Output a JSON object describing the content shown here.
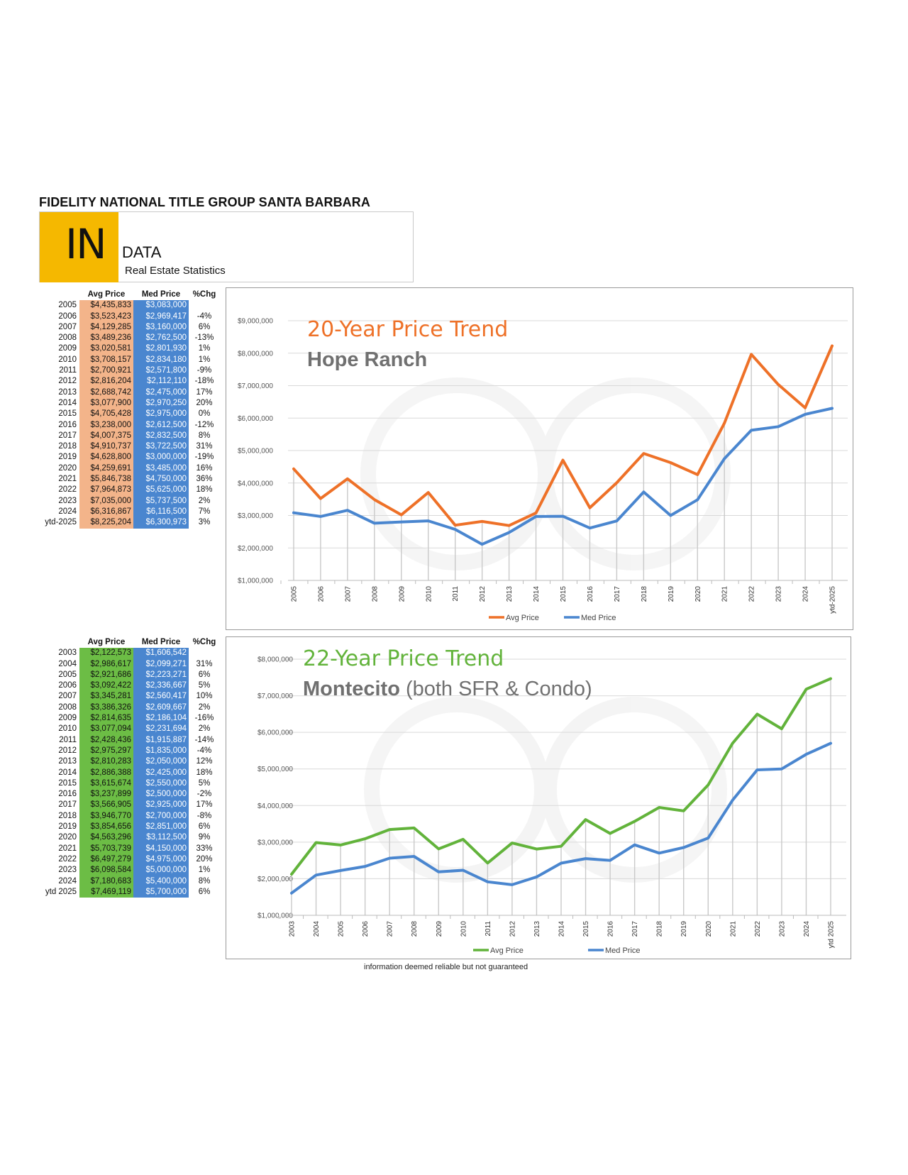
{
  "header": {
    "org": "FIDELITY NATIONAL TITLE GROUP SANTA BARBARA",
    "logo_big": "IN",
    "logo_word": "DATA",
    "logo_sub": "Real Estate Statistics"
  },
  "colors": {
    "avg1": "#ee7128",
    "avg2": "#62b33b",
    "med": "#4a86cf",
    "logo": "#f5b800"
  },
  "table1": {
    "headers": [
      "Avg Price",
      "Med Price",
      "%Chg"
    ],
    "rows": [
      {
        "year": "2005",
        "avg": "$4,435,833",
        "med": "$3,083,000",
        "pct": ""
      },
      {
        "year": "2006",
        "avg": "$3,523,423",
        "med": "$2,969,417",
        "pct": "-4%"
      },
      {
        "year": "2007",
        "avg": "$4,129,285",
        "med": "$3,160,000",
        "pct": "6%"
      },
      {
        "year": "2008",
        "avg": "$3,489,236",
        "med": "$2,762,500",
        "pct": "-13%"
      },
      {
        "year": "2009",
        "avg": "$3,020,581",
        "med": "$2,801,930",
        "pct": "1%"
      },
      {
        "year": "2010",
        "avg": "$3,708,157",
        "med": "$2,834,180",
        "pct": "1%"
      },
      {
        "year": "2011",
        "avg": "$2,700,921",
        "med": "$2,571,800",
        "pct": "-9%"
      },
      {
        "year": "2012",
        "avg": "$2,816,204",
        "med": "$2,112,110",
        "pct": "-18%"
      },
      {
        "year": "2013",
        "avg": "$2,688,742",
        "med": "$2,475,000",
        "pct": "17%"
      },
      {
        "year": "2014",
        "avg": "$3,077,900",
        "med": "$2,970,250",
        "pct": "20%"
      },
      {
        "year": "2015",
        "avg": "$4,705,428",
        "med": "$2,975,000",
        "pct": "0%"
      },
      {
        "year": "2016",
        "avg": "$3,238,000",
        "med": "$2,612,500",
        "pct": "-12%"
      },
      {
        "year": "2017",
        "avg": "$4,007,375",
        "med": "$2,832,500",
        "pct": "8%"
      },
      {
        "year": "2018",
        "avg": "$4,910,737",
        "med": "$3,722,500",
        "pct": "31%"
      },
      {
        "year": "2019",
        "avg": "$4,628,800",
        "med": "$3,000,000",
        "pct": "-19%"
      },
      {
        "year": "2020",
        "avg": "$4,259,691",
        "med": "$3,485,000",
        "pct": "16%"
      },
      {
        "year": "2021",
        "avg": "$5,846,738",
        "med": "$4,750,000",
        "pct": "36%"
      },
      {
        "year": "2022",
        "avg": "$7,964,873",
        "med": "$5,625,000",
        "pct": "18%"
      },
      {
        "year": "2023",
        "avg": "$7,035,000",
        "med": "$5,737,500",
        "pct": "2%"
      },
      {
        "year": "2024",
        "avg": "$6,316,867",
        "med": "$6,116,500",
        "pct": "7%"
      },
      {
        "year": "ytd-2025",
        "avg": "$8,225,204",
        "med": "$6,300,973",
        "pct": "3%"
      }
    ]
  },
  "table2": {
    "headers": [
      "Avg Price",
      "Med Price",
      "%Chg"
    ],
    "rows": [
      {
        "year": "2003",
        "avg": "$2,122,573",
        "med": "$1,606,542",
        "pct": ""
      },
      {
        "year": "2004",
        "avg": "$2,986,617",
        "med": "$2,099,271",
        "pct": "31%"
      },
      {
        "year": "2005",
        "avg": "$2,921,686",
        "med": "$2,223,271",
        "pct": "6%"
      },
      {
        "year": "2006",
        "avg": "$3,092,422",
        "med": "$2,336,667",
        "pct": "5%"
      },
      {
        "year": "2007",
        "avg": "$3,345,281",
        "med": "$2,560,417",
        "pct": "10%"
      },
      {
        "year": "2008",
        "avg": "$3,386,326",
        "med": "$2,609,667",
        "pct": "2%"
      },
      {
        "year": "2009",
        "avg": "$2,814,635",
        "med": "$2,186,104",
        "pct": "-16%"
      },
      {
        "year": "2010",
        "avg": "$3,077,094",
        "med": "$2,231,694",
        "pct": "2%"
      },
      {
        "year": "2011",
        "avg": "$2,428,436",
        "med": "$1,915,887",
        "pct": "-14%"
      },
      {
        "year": "2012",
        "avg": "$2,975,297",
        "med": "$1,835,000",
        "pct": "-4%"
      },
      {
        "year": "2013",
        "avg": "$2,810,283",
        "med": "$2,050,000",
        "pct": "12%"
      },
      {
        "year": "2014",
        "avg": "$2,886,388",
        "med": "$2,425,000",
        "pct": "18%"
      },
      {
        "year": "2015",
        "avg": "$3,615,674",
        "med": "$2,550,000",
        "pct": "5%"
      },
      {
        "year": "2016",
        "avg": "$3,237,899",
        "med": "$2,500,000",
        "pct": "-2%"
      },
      {
        "year": "2017",
        "avg": "$3,566,905",
        "med": "$2,925,000",
        "pct": "17%"
      },
      {
        "year": "2018",
        "avg": "$3,946,770",
        "med": "$2,700,000",
        "pct": "-8%"
      },
      {
        "year": "2019",
        "avg": "$3,854,656",
        "med": "$2,851,000",
        "pct": "6%"
      },
      {
        "year": "2020",
        "avg": "$4,563,296",
        "med": "$3,112,500",
        "pct": "9%"
      },
      {
        "year": "2021",
        "avg": "$5,703,739",
        "med": "$4,150,000",
        "pct": "33%"
      },
      {
        "year": "2022",
        "avg": "$6,497,279",
        "med": "$4,975,000",
        "pct": "20%"
      },
      {
        "year": "2023",
        "avg": "$6,098,584",
        "med": "$5,000,000",
        "pct": "1%"
      },
      {
        "year": "2024",
        "avg": "$7,180,683",
        "med": "$5,400,000",
        "pct": "8%"
      },
      {
        "year": "ytd 2025",
        "avg": "$7,469,119",
        "med": "$5,700,000",
        "pct": "6%"
      }
    ]
  },
  "chart_data": [
    {
      "type": "line",
      "title": "20-Year Price Trend",
      "subtitle": "Hope Ranch",
      "subtitle_note": "",
      "x": [
        "2005",
        "2006",
        "2007",
        "2008",
        "2009",
        "2010",
        "2011",
        "2012",
        "2013",
        "2014",
        "2015",
        "2016",
        "2017",
        "2018",
        "2019",
        "2020",
        "2021",
        "2022",
        "2023",
        "2024",
        "ytd-2025"
      ],
      "series": [
        {
          "name": "Avg Price",
          "color": "#ee7128",
          "values": [
            4435833,
            3523423,
            4129285,
            3489236,
            3020581,
            3708157,
            2700921,
            2816204,
            2688742,
            3077900,
            4705428,
            3238000,
            4007375,
            4910737,
            4628800,
            4259691,
            5846738,
            7964873,
            7035000,
            6316867,
            8225204
          ]
        },
        {
          "name": "Med Price",
          "color": "#4a86cf",
          "values": [
            3083000,
            2969417,
            3160000,
            2762500,
            2801930,
            2834180,
            2571800,
            2112110,
            2475000,
            2970250,
            2975000,
            2612500,
            2832500,
            3722500,
            3000000,
            3485000,
            4750000,
            5625000,
            5737500,
            6116500,
            6300973
          ]
        }
      ],
      "yticks": [
        "$1,000,000",
        "$2,000,000",
        "$3,000,000",
        "$4,000,000",
        "$5,000,000",
        "$6,000,000",
        "$7,000,000",
        "$8,000,000",
        "$9,000,000"
      ],
      "ylim": [
        1000000,
        9000000
      ],
      "legend": "bottom",
      "grid": true
    },
    {
      "type": "line",
      "title": "22-Year Price Trend",
      "subtitle": "Montecito",
      "subtitle_note": "(both SFR & Condo)",
      "x": [
        "2003",
        "2004",
        "2005",
        "2006",
        "2007",
        "2008",
        "2009",
        "2010",
        "2011",
        "2012",
        "2013",
        "2014",
        "2015",
        "2016",
        "2017",
        "2018",
        "2019",
        "2020",
        "2021",
        "2022",
        "2023",
        "2024",
        "ytd 2025"
      ],
      "series": [
        {
          "name": "Avg Price",
          "color": "#62b33b",
          "values": [
            2122573,
            2986617,
            2921686,
            3092422,
            3345281,
            3386326,
            2814635,
            3077094,
            2428436,
            2975297,
            2810283,
            2886388,
            3615674,
            3237899,
            3566905,
            3946770,
            3854656,
            4563296,
            5703739,
            6497279,
            6098584,
            7180683,
            7469119
          ]
        },
        {
          "name": "Med Price",
          "color": "#4a86cf",
          "values": [
            1606542,
            2099271,
            2223271,
            2336667,
            2560417,
            2609667,
            2186104,
            2231694,
            1915887,
            1835000,
            2050000,
            2425000,
            2550000,
            2500000,
            2925000,
            2700000,
            2851000,
            3112500,
            4150000,
            4975000,
            5000000,
            5400000,
            5700000
          ]
        }
      ],
      "yticks": [
        "$1,000,000",
        "$2,000,000",
        "$3,000,000",
        "$4,000,000",
        "$5,000,000",
        "$6,000,000",
        "$7,000,000",
        "$8,000,000"
      ],
      "ylim": [
        1000000,
        8000000
      ],
      "legend": "bottom",
      "grid": true
    }
  ],
  "footnote": "information deemed reliable but not guaranteed"
}
